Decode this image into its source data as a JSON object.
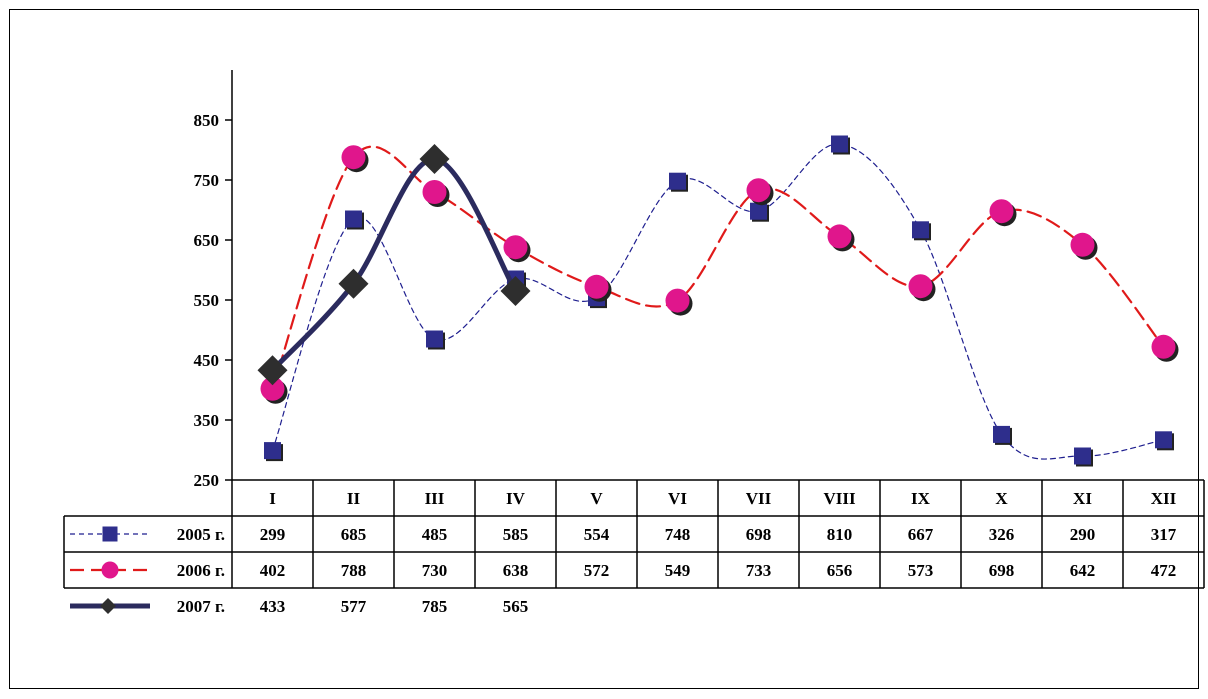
{
  "chart_data": {
    "type": "line",
    "categories": [
      "I",
      "II",
      "III",
      "IV",
      "V",
      "VI",
      "VII",
      "VIII",
      "IX",
      "X",
      "XI",
      "XII"
    ],
    "ylim": [
      250,
      950
    ],
    "yticks": [
      250,
      350,
      450,
      550,
      650,
      750,
      850
    ],
    "grid": false,
    "legend": "data-table-left",
    "series": [
      {
        "name": "2005 г.",
        "values": [
          299,
          685,
          485,
          585,
          554,
          748,
          698,
          810,
          667,
          326,
          290,
          317
        ],
        "color": "#1f1f8f",
        "line_style": "dotted-thin",
        "marker": "square",
        "marker_color": "#2e2e8c"
      },
      {
        "name": "2006 г.",
        "values": [
          402,
          788,
          730,
          638,
          572,
          549,
          733,
          656,
          573,
          698,
          642,
          472
        ],
        "color": "#e01a1a",
        "line_style": "dashed",
        "marker": "circle",
        "marker_color": "#e0168c"
      },
      {
        "name": "2007 г.",
        "values": [
          433,
          577,
          785,
          565,
          null,
          null,
          null,
          null,
          null,
          null,
          null,
          null
        ],
        "color": "#2b2b5e",
        "line_style": "solid-thick",
        "marker": "diamond",
        "marker_color": "#2e2e2e"
      }
    ]
  }
}
